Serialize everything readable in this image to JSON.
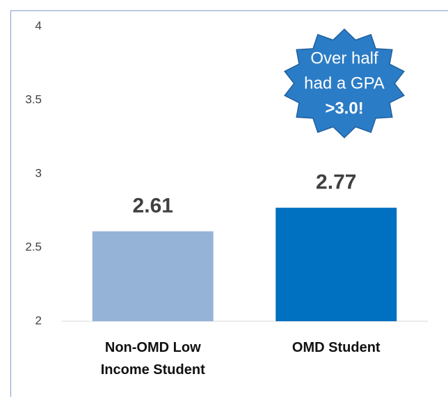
{
  "chart_data": {
    "type": "bar",
    "categories": [
      "Non-OMD Low Income Student",
      "OMD Student"
    ],
    "values": [
      2.61,
      2.77
    ],
    "colors": [
      "#95b3d7",
      "#0070c0"
    ],
    "ylim": [
      2,
      4
    ],
    "yticks": [
      2,
      2.5,
      3,
      3.5,
      4
    ],
    "grid": false,
    "annotation": [
      "Over half",
      "had a GPA",
      ">3.0!"
    ]
  }
}
